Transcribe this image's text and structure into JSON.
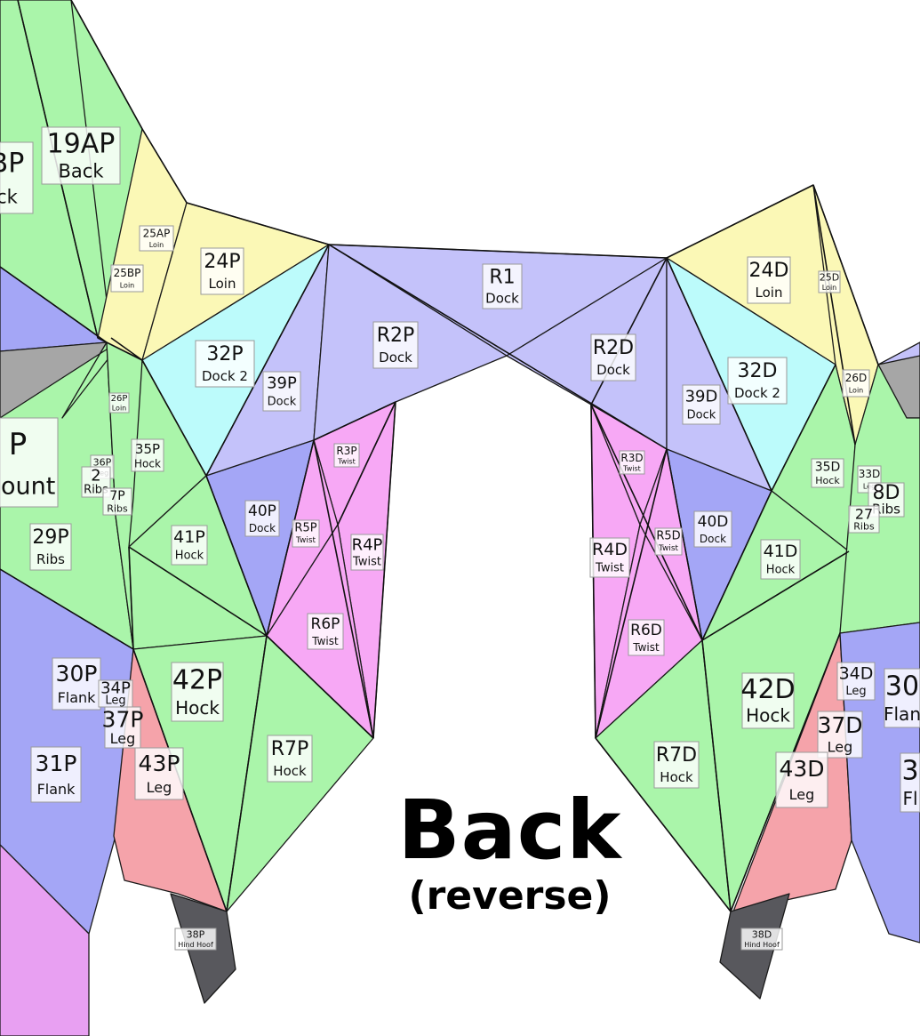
{
  "title": "Back",
  "subtitle": "(reverse)",
  "colors": {
    "green": "#aaf5aa",
    "yellow": "#fbf8b6",
    "cyan": "#bcfbfb",
    "lavender": "#c4c2fa",
    "blue": "#a4a6f6",
    "magenta": "#f7a8f5",
    "pink": "#f5a3aa",
    "gray": "#a6a6a6",
    "hoof": "#58585d",
    "purple": "#e8a0f2"
  },
  "labels": [
    {
      "code": "19AP",
      "name": "Back"
    },
    {
      "code": "BP",
      "name": "ck"
    },
    {
      "code": "25AP",
      "name": "Loin"
    },
    {
      "code": "25BP",
      "name": "Loin"
    },
    {
      "code": "24P",
      "name": "Loin"
    },
    {
      "code": "R1",
      "name": "Dock"
    },
    {
      "code": "R2P",
      "name": "Dock"
    },
    {
      "code": "R2D",
      "name": "Dock"
    },
    {
      "code": "24D",
      "name": "Loin"
    },
    {
      "code": "25D",
      "name": "Loin"
    },
    {
      "code": "32P",
      "name": "Dock 2"
    },
    {
      "code": "39P",
      "name": "Dock"
    },
    {
      "code": "32D",
      "name": "Dock 2"
    },
    {
      "code": "39D",
      "name": "Dock"
    },
    {
      "code": "26D",
      "name": "Loin"
    },
    {
      "code": "26P",
      "name": "Loin"
    },
    {
      "code": "36P",
      "name": "Leg"
    },
    {
      "code": "2",
      "name": "Ribs"
    },
    {
      "code": "7P",
      "name": "Ribs"
    },
    {
      "code": "35P",
      "name": "Hock"
    },
    {
      "code": "R3P",
      "name": "Twist"
    },
    {
      "code": "R3D",
      "name": "Twist"
    },
    {
      "code": "35D",
      "name": "Hock"
    },
    {
      "code": "33D",
      "name": "Leg"
    },
    {
      "code": "8D",
      "name": "Ribs"
    },
    {
      "code": "27",
      "name": "Ribs"
    },
    {
      "code": "P",
      "name": "Mount"
    },
    {
      "code": "29P",
      "name": "Ribs"
    },
    {
      "code": "41P",
      "name": "Hock"
    },
    {
      "code": "40P",
      "name": "Dock"
    },
    {
      "code": "R5P",
      "name": "Twist"
    },
    {
      "code": "R4P",
      "name": "Twist"
    },
    {
      "code": "R4D",
      "name": "Twist"
    },
    {
      "code": "R5D",
      "name": "Twist"
    },
    {
      "code": "40D",
      "name": "Dock"
    },
    {
      "code": "41D",
      "name": "Hock"
    },
    {
      "code": "R6P",
      "name": "Twist"
    },
    {
      "code": "R6D",
      "name": "Twist"
    },
    {
      "code": "30P",
      "name": "Flank"
    },
    {
      "code": "34P",
      "name": "Leg"
    },
    {
      "code": "42P",
      "name": "Hock"
    },
    {
      "code": "37P",
      "name": "Leg"
    },
    {
      "code": "R7P",
      "name": "Hock"
    },
    {
      "code": "R7D",
      "name": "Hock"
    },
    {
      "code": "42D",
      "name": "Hock"
    },
    {
      "code": "34D",
      "name": "Leg"
    },
    {
      "code": "30",
      "name": "Flan"
    },
    {
      "code": "37D",
      "name": "Leg"
    },
    {
      "code": "31P",
      "name": "Flank"
    },
    {
      "code": "43P",
      "name": "Leg"
    },
    {
      "code": "43D",
      "name": "Leg"
    },
    {
      "code": "3",
      "name": "Fl"
    },
    {
      "code": "38P",
      "name": "Hind Hoof"
    },
    {
      "code": "38D",
      "name": "Hind Hoof"
    }
  ]
}
